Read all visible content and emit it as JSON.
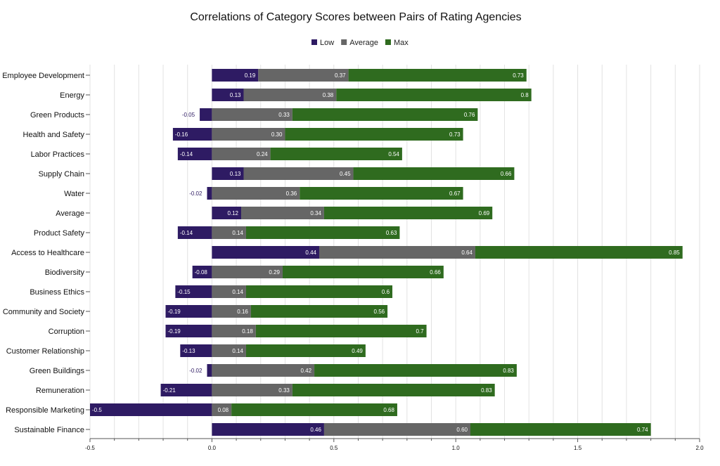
{
  "colors": {
    "low": "#2e1b63",
    "average": "#666666",
    "max": "#2f6b1f",
    "grid": "#e2e2e2",
    "axis": "#555555",
    "outside_label": "#2e1b63",
    "inside_label": "#ffffff"
  },
  "chart_data": {
    "type": "bar",
    "orientation": "horizontal",
    "stacked": true,
    "title": "Correlations of Category Scores between Pairs of Rating Agencies",
    "xlabel": "",
    "ylabel": "",
    "xlim": [
      -0.5,
      2.0
    ],
    "xticks": [
      -0.5,
      0.0,
      0.5,
      1.0,
      1.5,
      2.0
    ],
    "xtick_labels": [
      "-0.5",
      "0.0",
      "0.5",
      "1.0",
      "1.5",
      "2.0"
    ],
    "grid": true,
    "legend_position": "top-center",
    "categories": [
      "Employee Development",
      "Energy",
      "Green Products",
      "Health and Safety",
      "Labor Practices",
      "Supply Chain",
      "Water",
      "Average",
      "Product Safety",
      "Access to Healthcare",
      "Biodiversity",
      "Business Ethics",
      "Community and Society",
      "Corruption",
      "Customer Relationship",
      "Green Buildings",
      "Remuneration",
      "Responsible Marketing",
      "Sustainable Finance"
    ],
    "series": [
      {
        "name": "Low",
        "values": [
          0.19,
          0.13,
          -0.05,
          -0.16,
          -0.14,
          0.13,
          -0.02,
          0.12,
          -0.14,
          0.44,
          -0.08,
          -0.15,
          -0.19,
          -0.19,
          -0.13,
          -0.02,
          -0.21,
          -0.5,
          0.46
        ],
        "labels": [
          "0.19",
          "0.13",
          "-0.05",
          "-0.16",
          "-0.14",
          "0.13",
          "-0.02",
          "0.12",
          "-0.14",
          "0.44",
          "-0.08",
          "-0.15",
          "-0.19",
          "-0.19",
          "-0.13",
          "-0.02",
          "-0.21",
          "-0.5",
          "0.46"
        ]
      },
      {
        "name": "Average",
        "values": [
          0.37,
          0.38,
          0.33,
          0.3,
          0.24,
          0.45,
          0.36,
          0.34,
          0.14,
          0.64,
          0.29,
          0.14,
          0.16,
          0.18,
          0.14,
          0.42,
          0.33,
          0.08,
          0.6
        ],
        "labels": [
          "0.37",
          "0.38",
          "0.33",
          "0.30",
          "0.24",
          "0.45",
          "0.36",
          "0.34",
          "0.14",
          "0.64",
          "0.29",
          "0.14",
          "0.16",
          "0.18",
          "0.14",
          "0.42",
          "0.33",
          "0.08",
          "0.60"
        ]
      },
      {
        "name": "Max",
        "values": [
          0.73,
          0.8,
          0.76,
          0.73,
          0.54,
          0.66,
          0.67,
          0.69,
          0.63,
          0.85,
          0.66,
          0.6,
          0.56,
          0.7,
          0.49,
          0.83,
          0.83,
          0.68,
          0.74
        ],
        "labels": [
          "0.73",
          "0.8",
          "0.76",
          "0.73",
          "0.54",
          "0.66",
          "0.67",
          "0.69",
          "0.63",
          "0.85",
          "0.66",
          "0.6",
          "0.56",
          "0.7",
          "0.49",
          "0.83",
          "0.83",
          "0.68",
          "0.74"
        ]
      }
    ]
  }
}
